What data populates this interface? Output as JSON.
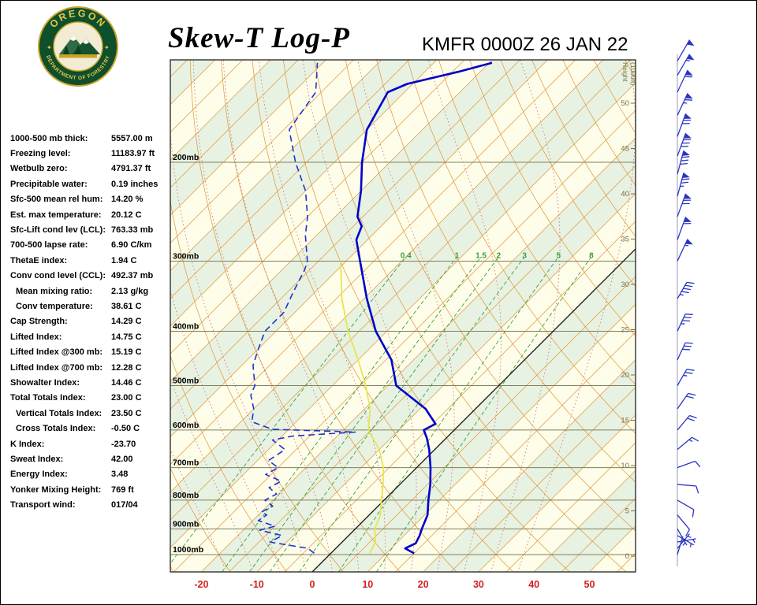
{
  "header": {
    "title": "Skew-T Log-P",
    "station_time": "KMFR 0000Z 26 JAN 22",
    "logo_top": "OREGON",
    "logo_bottom": "DEPARTMENT OF FORESTRY"
  },
  "indices": [
    {
      "label": "1000-500 mb thick:",
      "value": "5557.00 m"
    },
    {
      "label": "Freezing level:",
      "value": "11183.97 ft"
    },
    {
      "label": "Wetbulb zero:",
      "value": "4791.37 ft"
    },
    {
      "label": "Precipitable water:",
      "value": "0.19 inches"
    },
    {
      "label": "Sfc-500 mean rel hum:",
      "value": "14.20 %"
    },
    {
      "label": "Est. max temperature:",
      "value": "20.12 C"
    },
    {
      "label": "Sfc-Lift cond lev (LCL):",
      "value": "763.33 mb"
    },
    {
      "label": "700-500 lapse rate:",
      "value": "6.90 C/km"
    },
    {
      "label": "ThetaE index:",
      "value": "1.94 C"
    },
    {
      "label": "Conv cond level (CCL):",
      "value": "492.37 mb"
    },
    {
      "label": "Mean mixing ratio:",
      "value": "2.13 g/kg",
      "indent": true
    },
    {
      "label": "Conv temperature:",
      "value": "38.61 C",
      "indent": true
    },
    {
      "label": "Cap Strength:",
      "value": "14.29 C"
    },
    {
      "label": "Lifted Index:",
      "value": "14.75 C"
    },
    {
      "label": "Lifted Index @300 mb:",
      "value": "15.19 C"
    },
    {
      "label": "Lifted Index @700 mb:",
      "value": "12.28 C"
    },
    {
      "label": "Showalter Index:",
      "value": "14.46 C"
    },
    {
      "label": "Total Totals Index:",
      "value": "23.00 C"
    },
    {
      "label": "Vertical Totals Index:",
      "value": "23.50 C",
      "indent": true
    },
    {
      "label": "Cross Totals Index:",
      "value": "-0.50 C",
      "indent": true
    },
    {
      "label": "K Index:",
      "value": "-23.70"
    },
    {
      "label": "Sweat Index:",
      "value": "42.00"
    },
    {
      "label": "Energy Index:",
      "value": "3.48"
    },
    {
      "label": "Yonker Mixing Height:",
      "value": "769 ft"
    },
    {
      "label": "Transport wind:",
      "value": "017/04"
    }
  ],
  "chart_data": {
    "type": "line",
    "title": "Skew-T Log-P",
    "station_time": "KMFR 0000Z 26 JAN 22",
    "pressure_axis": {
      "levels_mb": [
        200,
        300,
        400,
        500,
        600,
        700,
        800,
        900,
        1000
      ],
      "label_suffix": "mb"
    },
    "temp_axis": {
      "ticks_c": [
        -20,
        -10,
        0,
        10,
        20,
        30,
        40,
        50
      ],
      "units": "C"
    },
    "height_axis": {
      "ticks_kft": [
        0,
        5,
        10,
        15,
        20,
        25,
        30,
        35,
        40,
        45,
        50
      ],
      "label_lines": [
        "Height",
        "(1000ft)"
      ]
    },
    "mixing_ratio_lines_gkg": [
      0.4,
      1,
      1.5,
      2,
      3,
      5,
      8
    ],
    "temperature_profile": {
      "pressure_mb": [
        995,
        975,
        955,
        925,
        900,
        850,
        800,
        750,
        700,
        650,
        620,
        600,
        585,
        550,
        500,
        450,
        400,
        350,
        300,
        275,
        260,
        250,
        225,
        200,
        175,
        150,
        145,
        138,
        133
      ],
      "temp_c": [
        15,
        12.5,
        13.5,
        12.8,
        12,
        10.5,
        8,
        5.5,
        2.5,
        -1,
        -3.5,
        -5.5,
        -4.5,
        -9,
        -18.5,
        -24,
        -32,
        -39.5,
        -47.5,
        -52,
        -53.5,
        -56,
        -60,
        -65,
        -70,
        -73,
        -71,
        -64,
        -59.5
      ]
    },
    "dewpoint_profile": {
      "pressure_mb": [
        995,
        975,
        950,
        925,
        905,
        890,
        870,
        850,
        840,
        820,
        800,
        780,
        760,
        740,
        720,
        700,
        680,
        650,
        625,
        615,
        605,
        598,
        580,
        550,
        520,
        500,
        460,
        430,
        400,
        370,
        340,
        310,
        300,
        270,
        250,
        225,
        200,
        175,
        150,
        133
      ],
      "dewpoint_c": [
        -3,
        -5,
        -13,
        -12,
        -17,
        -15,
        -19,
        -18.5,
        -20,
        -19,
        -21.5,
        -20.5,
        -23,
        -22,
        -26,
        -25,
        -28,
        -27,
        -31,
        -28,
        -17.5,
        -33,
        -38,
        -40,
        -43,
        -44,
        -48,
        -50,
        -52,
        -52,
        -54,
        -56,
        -57,
        -62,
        -65,
        -70,
        -77,
        -84,
        -86,
        -91
      ]
    },
    "wetbulb_profile": {
      "pressure_mb": [
        995,
        950,
        900,
        850,
        800,
        750,
        700,
        650,
        600,
        550,
        500,
        450,
        400,
        350,
        300
      ],
      "wetbulb_c": [
        7,
        6,
        3.5,
        2,
        -0.5,
        -3,
        -6,
        -10,
        -15.5,
        -19,
        -24,
        -30,
        -37,
        -44,
        -51
      ]
    },
    "wind_barbs": [
      {
        "p": 1000,
        "dir": 17,
        "spd": 4
      },
      {
        "p": 975,
        "dir": 40,
        "spd": 5
      },
      {
        "p": 950,
        "dir": 80,
        "spd": 5
      },
      {
        "p": 925,
        "dir": 120,
        "spd": 5
      },
      {
        "p": 900,
        "dir": 150,
        "spd": 7
      },
      {
        "p": 850,
        "dir": 140,
        "spd": 10
      },
      {
        "p": 800,
        "dir": 120,
        "spd": 8
      },
      {
        "p": 750,
        "dir": 95,
        "spd": 10
      },
      {
        "p": 700,
        "dir": 70,
        "spd": 12
      },
      {
        "p": 650,
        "dir": 50,
        "spd": 15
      },
      {
        "p": 600,
        "dir": 40,
        "spd": 18
      },
      {
        "p": 550,
        "dir": 35,
        "spd": 20
      },
      {
        "p": 500,
        "dir": 30,
        "spd": 25
      },
      {
        "p": 450,
        "dir": 25,
        "spd": 30
      },
      {
        "p": 400,
        "dir": 25,
        "spd": 35
      },
      {
        "p": 350,
        "dir": 30,
        "spd": 45
      },
      {
        "p": 300,
        "dir": 25,
        "spd": 55
      },
      {
        "p": 275,
        "dir": 20,
        "spd": 60
      },
      {
        "p": 250,
        "dir": 20,
        "spd": 70
      },
      {
        "p": 230,
        "dir": 15,
        "spd": 75
      },
      {
        "p": 210,
        "dir": 15,
        "spd": 80
      },
      {
        "p": 195,
        "dir": 20,
        "spd": 78
      },
      {
        "p": 180,
        "dir": 20,
        "spd": 72
      },
      {
        "p": 165,
        "dir": 25,
        "spd": 65
      },
      {
        "p": 150,
        "dir": 25,
        "spd": 60
      },
      {
        "p": 140,
        "dir": 30,
        "spd": 55
      },
      {
        "p": 132,
        "dir": 30,
        "spd": 50
      }
    ],
    "colors": {
      "band_a": "#fdfde9",
      "band_b": "#e7f2e2",
      "isotherm": "#e09537",
      "dry_adiabat": "#e09537",
      "moist_adiabat": "#d1686b",
      "mixing_ratio": "#3aa03c",
      "pressure_line": "#80805a",
      "zero_isotherm": "#111111",
      "temperature": "#0000cc",
      "dewpoint": "#2233cc",
      "wetbulb": "#e8e44f",
      "barbs": "#2a35c2",
      "temp_labels": "#d42020",
      "height_labels": "#7d6d3f",
      "frame": "#222222"
    }
  }
}
